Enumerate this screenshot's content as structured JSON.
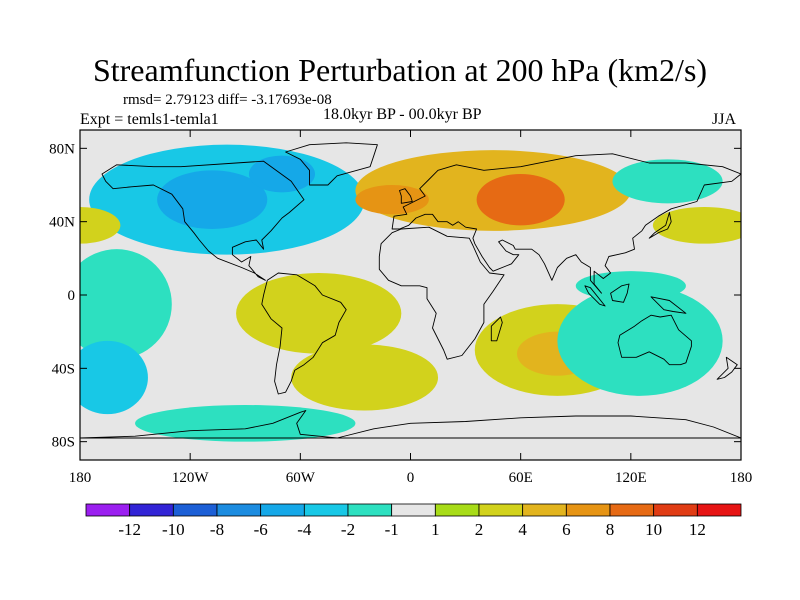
{
  "title": "Streamfunction Perturbation at 200 hPa (km2/s)",
  "stats": "rmsd= 2.79123 diff= -3.17693e-08",
  "experiment": "Expt = temls1-temla1",
  "time_period": "18.0kyr BP - 00.0kyr BP",
  "season": "JJA",
  "map": {
    "projection": "cylindrical equidistant",
    "lon_range": [
      -180,
      180
    ],
    "lat_range": [
      -90,
      90
    ],
    "land_outline_color": "#000000",
    "ocean_neutral_color": "#e6e6e6",
    "x_tick_labels": [
      "180",
      "120W",
      "60W",
      "0",
      "60E",
      "120E",
      "180"
    ],
    "x_tick_values": [
      -180,
      -120,
      -60,
      0,
      60,
      120,
      180
    ],
    "y_tick_labels": [
      "80N",
      "40N",
      "0",
      "40S",
      "80S"
    ],
    "y_tick_values": [
      80,
      40,
      0,
      -40,
      -80
    ]
  },
  "colorbar": {
    "tick_labels": [
      "-12",
      "-10",
      "-8",
      "-6",
      "-4",
      "-2",
      "-1",
      "1",
      "2",
      "4",
      "6",
      "8",
      "10",
      "12"
    ],
    "colors": [
      "#9b1ff0",
      "#3224d6",
      "#1c5fd6",
      "#1c8ce0",
      "#15a8e8",
      "#18c8e6",
      "#2de0c0",
      "#e6e6e6",
      "#a8dc18",
      "#d2d21c",
      "#e2b41e",
      "#e69414",
      "#e66a14",
      "#e03c14",
      "#e61414"
    ]
  },
  "anomaly_regions": [
    {
      "name": "north-america-low",
      "cx": -100,
      "cy": 52,
      "rx": 75,
      "ry": 30,
      "level": -3
    },
    {
      "name": "north-america-low-core",
      "cx": -108,
      "cy": 52,
      "rx": 30,
      "ry": 16,
      "level": -5
    },
    {
      "name": "hudson-low-core",
      "cx": -70,
      "cy": 66,
      "rx": 18,
      "ry": 10,
      "level": -5
    },
    {
      "name": "north-pacific-ridge",
      "cx": -180,
      "cy": 38,
      "rx": 22,
      "ry": 10,
      "level": 3
    },
    {
      "name": "west-pacific-ridge",
      "cx": 160,
      "cy": 38,
      "rx": 28,
      "ry": 10,
      "level": 3
    },
    {
      "name": "tropical-east-pacific-low",
      "cx": -160,
      "cy": -5,
      "rx": 30,
      "ry": 30,
      "level": -2
    },
    {
      "name": "south-pacific-low",
      "cx": -165,
      "cy": -45,
      "rx": 22,
      "ry": 20,
      "level": -3
    },
    {
      "name": "eurasia-ridge",
      "cx": 45,
      "cy": 57,
      "rx": 75,
      "ry": 22,
      "level": 4
    },
    {
      "name": "eurasia-ridge-core",
      "cx": 60,
      "cy": 52,
      "rx": 24,
      "ry": 14,
      "level": 8
    },
    {
      "name": "north-atlantic-ridge-core",
      "cx": -10,
      "cy": 52,
      "rx": 20,
      "ry": 8,
      "level": 6
    },
    {
      "name": "south-america-ridge",
      "cx": -50,
      "cy": -10,
      "rx": 45,
      "ry": 22,
      "level": 2
    },
    {
      "name": "south-atlantic-ridge",
      "cx": -25,
      "cy": -45,
      "rx": 40,
      "ry": 18,
      "level": 2
    },
    {
      "name": "indian-ocean-ridge",
      "cx": 80,
      "cy": -30,
      "rx": 45,
      "ry": 25,
      "level": 3
    },
    {
      "name": "indian-ocean-ridge-core",
      "cx": 80,
      "cy": -32,
      "rx": 22,
      "ry": 12,
      "level": 5
    },
    {
      "name": "australia-low",
      "cx": 125,
      "cy": -25,
      "rx": 45,
      "ry": 30,
      "level": -2
    },
    {
      "name": "antarctic-low",
      "cx": -90,
      "cy": -70,
      "rx": 60,
      "ry": 10,
      "level": -2
    },
    {
      "name": "maritime-low",
      "cx": 120,
      "cy": 5,
      "rx": 30,
      "ry": 8,
      "level": -2
    },
    {
      "name": "east-asia-low",
      "cx": 140,
      "cy": 62,
      "rx": 30,
      "ry": 12,
      "level": -2
    }
  ]
}
